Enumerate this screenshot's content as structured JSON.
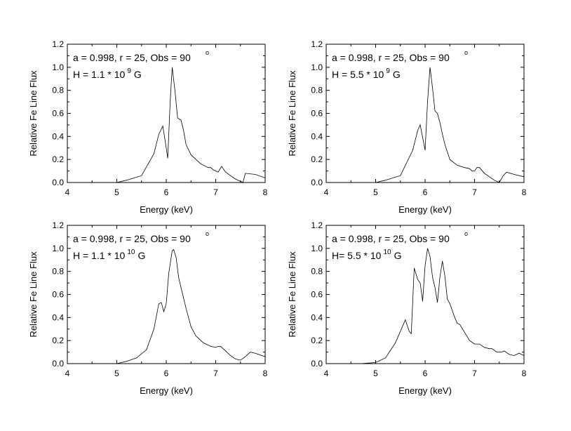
{
  "chart_data": [
    {
      "type": "line",
      "xlabel": "Energy (keV)",
      "ylabel": "Relative Fe Line Flux",
      "xlim": [
        4,
        8
      ],
      "ylim": [
        0,
        1.2
      ],
      "xticks": [
        "4",
        "5",
        "6",
        "7",
        "8"
      ],
      "yticks": [
        "0.0",
        "0.2",
        "0.4",
        "0.6",
        "0.8",
        "1.0",
        "1.2"
      ],
      "annotation_line1": "a = 0.998, r = 25, Obs = 90",
      "degree_symbol": "o",
      "annotation_line2_prefix": "H = 1.1 * 10",
      "annotation_exponent": "9",
      "annotation_unit": "G",
      "series": [
        {
          "x": [
            4.65,
            5.0,
            5.2,
            5.5,
            5.75,
            5.85,
            5.93,
            6.0,
            6.03,
            6.08,
            6.12,
            6.18,
            6.23,
            6.3,
            6.35,
            6.4,
            6.5,
            6.7,
            6.85,
            6.9,
            6.95,
            7.05,
            7.12,
            7.2,
            7.3,
            7.4,
            7.5,
            7.55,
            7.6,
            7.8,
            8.0
          ],
          "y": [
            0.0,
            0.0,
            0.02,
            0.06,
            0.25,
            0.42,
            0.49,
            0.3,
            0.21,
            0.7,
            1.0,
            0.78,
            0.56,
            0.54,
            0.45,
            0.33,
            0.24,
            0.16,
            0.13,
            0.13,
            0.11,
            0.09,
            0.14,
            0.09,
            0.06,
            0.03,
            0.01,
            0.0,
            0.08,
            0.07,
            0.04
          ]
        }
      ]
    },
    {
      "type": "line",
      "xlabel": "Energy (keV)",
      "ylabel": "Relative Fe Line Flux",
      "xlim": [
        4,
        8
      ],
      "ylim": [
        0,
        1.2
      ],
      "xticks": [
        "4",
        "5",
        "6",
        "7",
        "8"
      ],
      "yticks": [
        "0.0",
        "0.2",
        "0.4",
        "0.6",
        "0.8",
        "1.0",
        "1.2"
      ],
      "annotation_line1": "a = 0.998, r = 25, Obs = 90",
      "degree_symbol": "o",
      "annotation_line2_prefix": "H = 5.5 * 10",
      "annotation_exponent": "9",
      "annotation_unit": "G",
      "series": [
        {
          "x": [
            4.65,
            5.0,
            5.2,
            5.5,
            5.75,
            5.85,
            5.9,
            5.96,
            6.0,
            6.05,
            6.1,
            6.15,
            6.2,
            6.25,
            6.3,
            6.35,
            6.4,
            6.5,
            6.65,
            6.8,
            6.9,
            6.95,
            7.0,
            7.05,
            7.1,
            7.2,
            7.3,
            7.4,
            7.5,
            7.58,
            7.65,
            7.8,
            8.0
          ],
          "y": [
            0.0,
            0.0,
            0.02,
            0.06,
            0.28,
            0.45,
            0.5,
            0.37,
            0.28,
            0.7,
            1.0,
            0.82,
            0.62,
            0.6,
            0.52,
            0.42,
            0.33,
            0.2,
            0.15,
            0.13,
            0.12,
            0.1,
            0.1,
            0.13,
            0.13,
            0.08,
            0.05,
            0.02,
            0.0,
            0.06,
            0.09,
            0.07,
            0.05
          ]
        }
      ]
    },
    {
      "type": "line",
      "xlabel": "Energy (keV)",
      "ylabel": "Relative Fe Line Flux",
      "xlim": [
        4,
        8
      ],
      "ylim": [
        0,
        1.2
      ],
      "xticks": [
        "4",
        "5",
        "6",
        "7",
        "8"
      ],
      "yticks": [
        "0.0",
        "0.2",
        "0.4",
        "0.6",
        "0.8",
        "1.0",
        "1.2"
      ],
      "annotation_line1": "a = 0.998, r = 25, Obs = 90",
      "degree_symbol": "o",
      "annotation_line2_prefix": "H = 1.1 * 10",
      "annotation_exponent": "10",
      "annotation_unit": "G",
      "series": [
        {
          "x": [
            4.65,
            5.0,
            5.2,
            5.4,
            5.6,
            5.75,
            5.85,
            5.9,
            5.95,
            6.0,
            6.05,
            6.12,
            6.15,
            6.2,
            6.25,
            6.3,
            6.4,
            6.5,
            6.6,
            6.75,
            6.9,
            7.0,
            7.05,
            7.1,
            7.2,
            7.3,
            7.4,
            7.5,
            7.6,
            7.7,
            7.8,
            8.0
          ],
          "y": [
            0.0,
            0.0,
            0.02,
            0.05,
            0.12,
            0.3,
            0.52,
            0.53,
            0.45,
            0.52,
            0.78,
            0.98,
            0.99,
            0.92,
            0.75,
            0.66,
            0.48,
            0.32,
            0.24,
            0.18,
            0.15,
            0.14,
            0.15,
            0.15,
            0.11,
            0.07,
            0.04,
            0.03,
            0.06,
            0.1,
            0.09,
            0.06
          ]
        }
      ]
    },
    {
      "type": "line",
      "xlabel": "Energy (keV)",
      "ylabel": "Relative Fe Line Flux",
      "xlim": [
        4,
        8
      ],
      "ylim": [
        0,
        1.2
      ],
      "xticks": [
        "4",
        "5",
        "6",
        "7",
        "8"
      ],
      "yticks": [
        "0.0",
        "0.2",
        "0.4",
        "0.6",
        "0.8",
        "1.0",
        "1.2"
      ],
      "annotation_line1": "a = 0.998, r = 25, Obs = 90",
      "degree_symbol": "o",
      "annotation_line2_prefix": "H= 5.5 * 10",
      "annotation_exponent": "10",
      "annotation_unit": "G",
      "series": [
        {
          "x": [
            4.5,
            4.7,
            5.0,
            5.2,
            5.4,
            5.55,
            5.6,
            5.68,
            5.72,
            5.78,
            5.85,
            5.9,
            5.95,
            6.0,
            6.05,
            6.1,
            6.15,
            6.2,
            6.25,
            6.3,
            6.35,
            6.4,
            6.45,
            6.5,
            6.55,
            6.6,
            6.65,
            6.7,
            6.8,
            6.9,
            7.0,
            7.1,
            7.2,
            7.3,
            7.35,
            7.45,
            7.55,
            7.6,
            7.7,
            7.8,
            7.9,
            8.0
          ],
          "y": [
            0.0,
            0.0,
            0.01,
            0.05,
            0.18,
            0.33,
            0.38,
            0.28,
            0.26,
            0.83,
            0.73,
            0.7,
            0.54,
            0.85,
            1.0,
            0.93,
            0.75,
            0.66,
            0.53,
            0.75,
            0.89,
            0.76,
            0.56,
            0.52,
            0.46,
            0.4,
            0.35,
            0.34,
            0.27,
            0.2,
            0.17,
            0.17,
            0.14,
            0.13,
            0.13,
            0.1,
            0.1,
            0.11,
            0.08,
            0.07,
            0.09,
            0.07
          ]
        }
      ]
    }
  ]
}
